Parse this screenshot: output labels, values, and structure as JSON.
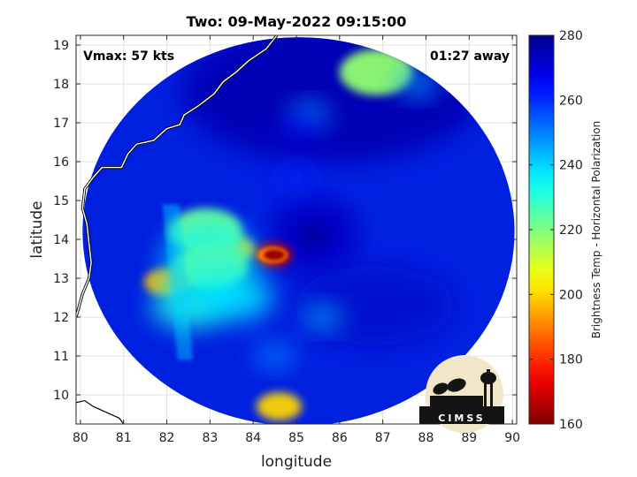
{
  "chart_data": {
    "type": "heatmap",
    "title": "Two: 09-May-2022 09:15:00",
    "xlabel": "longitude",
    "ylabel": "latitude",
    "xlim": [
      79.9,
      90.1
    ],
    "ylim": [
      9.25,
      19.25
    ],
    "xticks": [
      "80",
      "81",
      "82",
      "83",
      "84",
      "85",
      "86",
      "87",
      "88",
      "89",
      "90"
    ],
    "yticks": [
      "10",
      "11",
      "12",
      "13",
      "14",
      "15",
      "16",
      "17",
      "18",
      "19"
    ],
    "grid": true,
    "annotations": {
      "vmax": "Vmax: 57 kts",
      "away": "01:27 away"
    },
    "colorbar": {
      "label": "Brightness Temp - Horizontal Polarization",
      "range": [
        160,
        280
      ],
      "ticks": [
        "160",
        "180",
        "200",
        "220",
        "240",
        "260",
        "280"
      ],
      "colors": [
        "#7f0000",
        "#ff0000",
        "#ff8000",
        "#ffff00",
        "#80ff80",
        "#00ffff",
        "#0080ff",
        "#0000ff",
        "#00008f"
      ]
    },
    "swath": {
      "center": [
        85.05,
        14.2
      ],
      "radius_deg_lon": 5.0,
      "radius_deg_lat": 5.0
    },
    "features": [
      {
        "lon": 84.45,
        "lat": 13.6,
        "temp": 168
      },
      {
        "lon": 83.5,
        "lat": 13.75,
        "temp": 200
      },
      {
        "lon": 82.9,
        "lat": 14.2,
        "temp": 222
      },
      {
        "lon": 83.0,
        "lat": 13.3,
        "temp": 212
      },
      {
        "lon": 82.0,
        "lat": 12.9,
        "temp": 196
      },
      {
        "lon": 82.5,
        "lat": 12.3,
        "temp": 232
      },
      {
        "lon": 83.6,
        "lat": 12.5,
        "temp": 238
      },
      {
        "lon": 84.6,
        "lat": 9.7,
        "temp": 200
      },
      {
        "lon": 86.85,
        "lat": 18.3,
        "temp": 218
      },
      {
        "lon": 87.8,
        "lat": 18.0,
        "temp": 246
      },
      {
        "lon": 85.3,
        "lat": 17.2,
        "temp": 248
      },
      {
        "lon": 85.6,
        "lat": 12.0,
        "temp": 246
      },
      {
        "lon": 84.5,
        "lat": 11.0,
        "temp": 250
      },
      {
        "lon": 85.0,
        "lat": 15.6,
        "temp": 262
      },
      {
        "lon": 85.5,
        "lat": 14.2,
        "temp": 274
      },
      {
        "lon": 85.1,
        "lat": 16.8,
        "temp": 268
      }
    ]
  },
  "logo": {
    "text": "CIMSS"
  }
}
